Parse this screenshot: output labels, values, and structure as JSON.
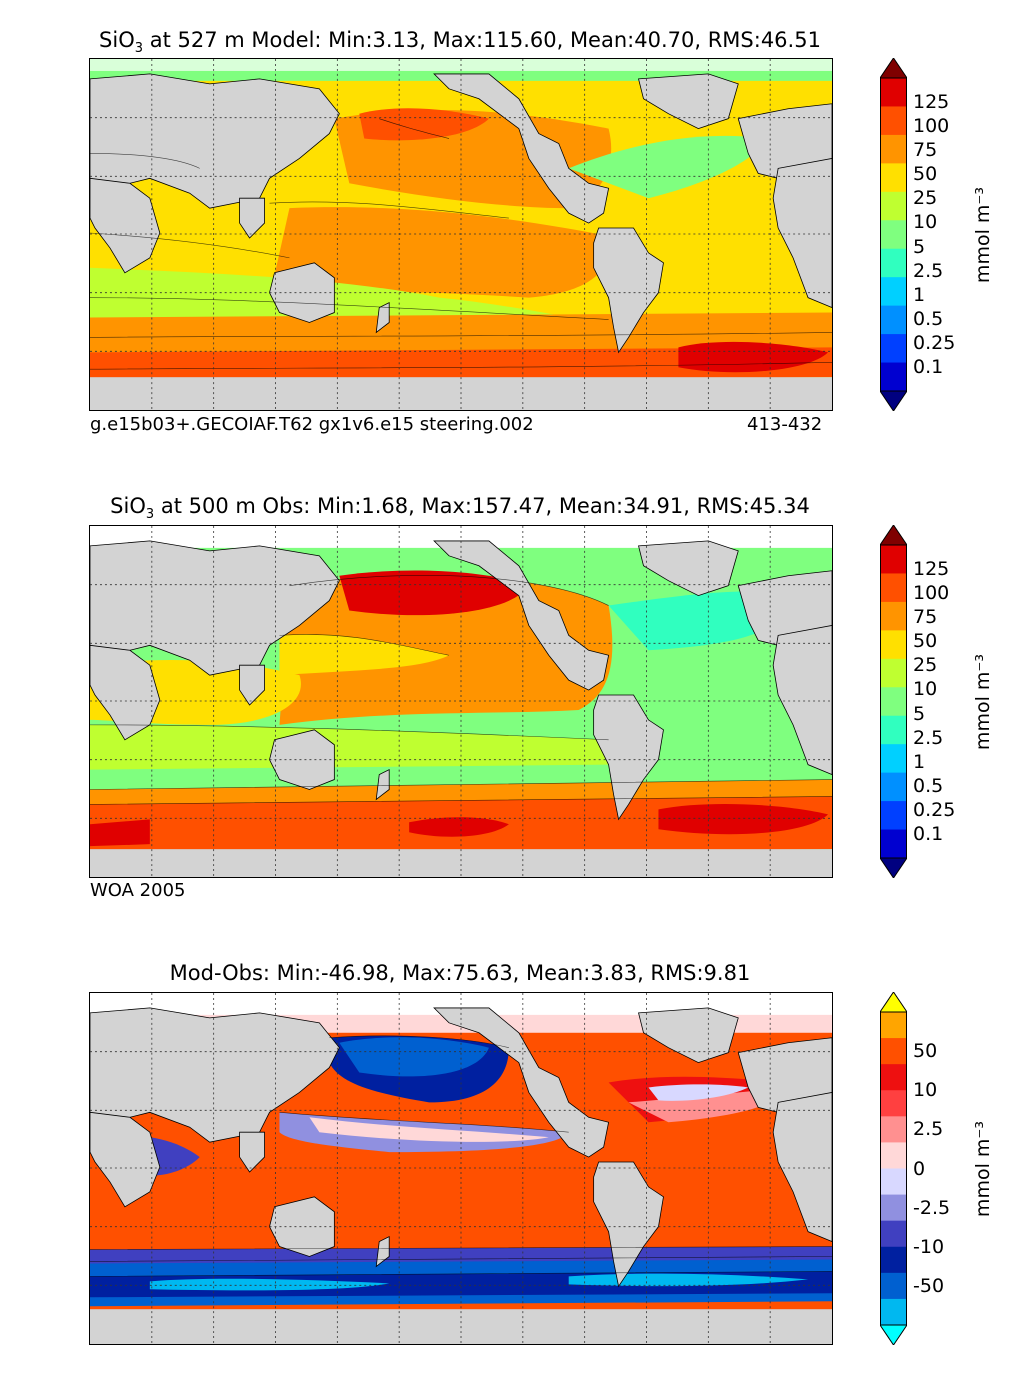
{
  "panels": [
    {
      "id": "model",
      "title_pre": "SiO",
      "title_sub": "3",
      "title_post": " at 527 m Model: Min:3.13, Max:115.60, Mean:40.70, RMS:46.51",
      "footnote_left": "g.e15b03+.GECOIAF.T62 gx1v6.e15 steering.002",
      "footnote_right": "413-432",
      "units": "mmol m⁻³",
      "colorbar": {
        "ticks": [
          "125",
          "100",
          "75",
          "50",
          "25",
          "10",
          "5",
          "2.5",
          "1",
          "0.5",
          "0.25",
          "0.1"
        ],
        "colors": [
          "#7f0000",
          "#e00000",
          "#ff5000",
          "#ff9400",
          "#ffe000",
          "#bfff30",
          "#7fff7f",
          "#30ffbf",
          "#00d0ff",
          "#0090ff",
          "#0040ff",
          "#0000d0",
          "#000080"
        ]
      }
    },
    {
      "id": "obs",
      "title_pre": "SiO",
      "title_sub": "3",
      "title_post": " at 500 m Obs: Min:1.68, Max:157.47, Mean:34.91, RMS:45.34",
      "footnote_left": "WOA 2005",
      "footnote_right": "",
      "units": "mmol m⁻³",
      "colorbar": {
        "ticks": [
          "125",
          "100",
          "75",
          "50",
          "25",
          "10",
          "5",
          "2.5",
          "1",
          "0.5",
          "0.25",
          "0.1"
        ],
        "colors": [
          "#7f0000",
          "#e00000",
          "#ff5000",
          "#ff9400",
          "#ffe000",
          "#bfff30",
          "#7fff7f",
          "#30ffbf",
          "#00d0ff",
          "#0090ff",
          "#0040ff",
          "#0000d0",
          "#000080"
        ]
      }
    },
    {
      "id": "diff",
      "title_pre": "",
      "title_sub": "",
      "title_post": "Mod-Obs: Min:-46.98, Max:75.63, Mean:3.83, RMS:9.81",
      "footnote_left": "",
      "footnote_right": "",
      "units": "mmol m⁻³",
      "colorbar": {
        "ticks": [
          "50",
          "10",
          "2.5",
          "0",
          "-2.5",
          "-10",
          "-50"
        ],
        "colors": [
          "#ffff00",
          "#ffa500",
          "#ff5000",
          "#ee1010",
          "#ff4040",
          "#ff9090",
          "#ffd8d8",
          "#d8d8ff",
          "#9090e0",
          "#4040c0",
          "#0020a0",
          "#0060d0",
          "#00b8f0",
          "#00ffff"
        ]
      }
    }
  ],
  "colors": {
    "land": "#d3d3d3",
    "ice": "#ffffff",
    "coast": "#000000"
  }
}
